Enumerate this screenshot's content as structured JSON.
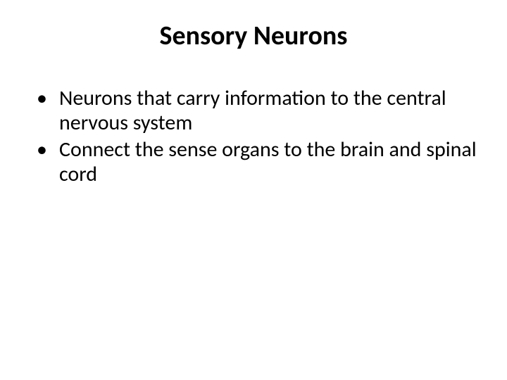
{
  "slide": {
    "title": "Sensory Neurons",
    "title_fontsize": 38,
    "title_fontweight": 700,
    "bullets": [
      "Neurons that carry information to the central nervous system",
      "Connect the sense organs to the brain and spinal cord"
    ],
    "body_fontsize": 30,
    "text_color": "#000000",
    "background_color": "#ffffff"
  }
}
